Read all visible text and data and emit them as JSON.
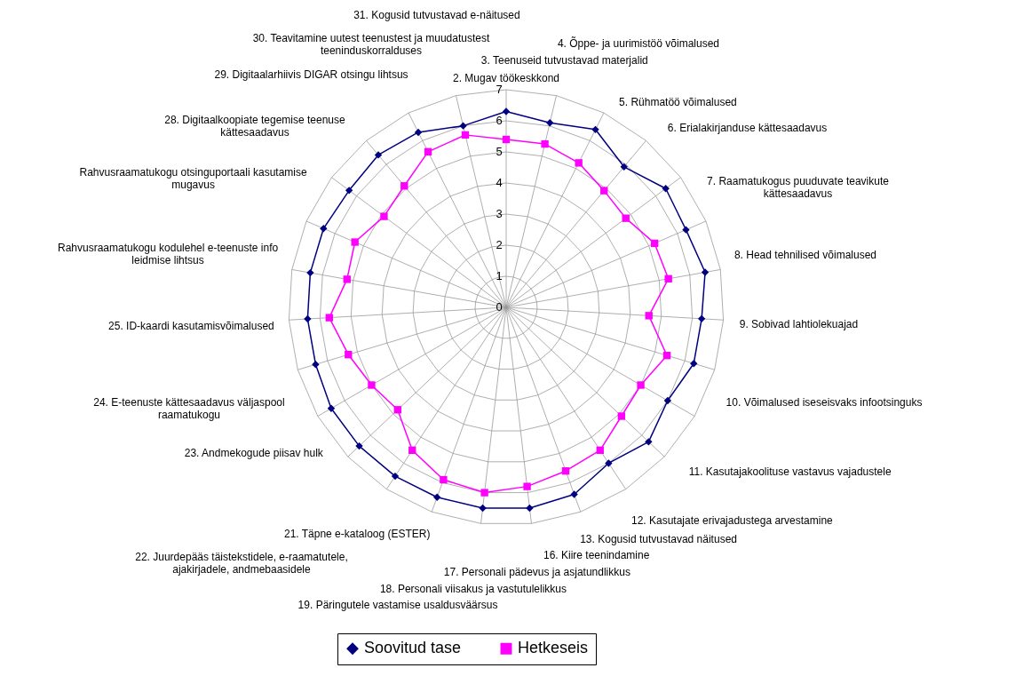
{
  "chart_data": {
    "type": "radar",
    "categories": [
      "2. Mugav töökeskkond",
      "3. Teenuseid tutvustavad materjalid",
      "4. Õppe- ja uurimistöö võimalused",
      "5. Rühmatöö võimalused",
      "6. Erialakirjanduse kättesaadavus",
      "7. Raamatukogus puuduvate teavikute\nkättesaadavus",
      "8. Head tehnilised võimalused",
      "9. Sobivad lahtiolekuajad",
      "10. Võimalused iseseisvaks infootsinguks",
      "11. Kasutajakoolituse vastavus vajadustele",
      "12. Kasutajate erivajadustega arvestamine",
      "13. Kogusid tutvustavad näitused",
      "16. Kiire teenindamine",
      "17. Personali pädevus ja asjatundlikkus",
      "18. Personali viisakus ja vastutulelikkus",
      "19. Päringutele vastamise usaldusväärsus",
      "21. Täpne e-kataloog (ESTER)",
      "22. Juurdepääs täistekstidele, e-raamatutele,\najakirjadele, andmebaasidele",
      "23. Andmekogude piisav hulk",
      "24. E-teenuste kättesaadavus väljaspool\nraamatukogu",
      "25. ID-kaardi kasutamisvõimalused",
      "Rahvusraamatukogu kodulehel e-teenuste info\nleidmise lihtsus",
      "Rahvusraamatukogu otsinguportaali kasutamise\nmugavus",
      "28. Digitaalkoopiate tegemise teenuse\nkättesaadavus",
      "29. Digitaalarhiivis DIGAR otsingu lihtsus",
      "30. Teavitamine uutest teenustest ja muudatustest\nteeninduskorralduses",
      "31. Kogusid tutvustavad e-näitused"
    ],
    "series": [
      {
        "name": "Soovitud tase",
        "color": "#000080",
        "marker": "diamond",
        "values": [
          6.3,
          6.1,
          6.4,
          5.9,
          6.4,
          6.3,
          6.5,
          6.3,
          6.3,
          6.0,
          6.3,
          6.0,
          6.4,
          6.5,
          6.5,
          6.5,
          6.5,
          6.5,
          6.5,
          6.4,
          6.4,
          6.4,
          6.4,
          6.3,
          6.4,
          6.3,
          6.0
        ]
      },
      {
        "name": "Hetkeseis",
        "color": "#ff00ff",
        "marker": "square",
        "values": [
          5.4,
          5.4,
          5.2,
          4.9,
          4.8,
          5.2,
          5.3,
          4.6,
          5.4,
          5.0,
          5.1,
          5.5,
          5.6,
          5.8,
          6.0,
          5.9,
          5.5,
          4.8,
          5.0,
          5.3,
          5.7,
          5.2,
          5.3,
          4.9,
          5.1,
          5.6,
          5.7
        ]
      }
    ],
    "ylim": [
      0,
      7
    ],
    "yticks": [
      0,
      1,
      2,
      3,
      4,
      5,
      6,
      7
    ],
    "grid": true,
    "legend": "bottom"
  }
}
